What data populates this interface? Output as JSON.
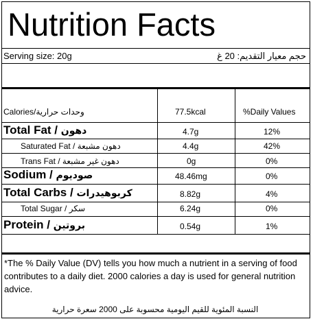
{
  "title": "Nutrition Facts",
  "serving": {
    "en": "Serving size: 20g",
    "ar": "حجم معيار التقديم: 20 غ"
  },
  "header": {
    "calories_label": "Calories/وحدات حرارية",
    "calories_value": "77.5kcal",
    "dv_label": "%Daily Values"
  },
  "rows": [
    {
      "en": "Total Fat / ",
      "ar": "دهون",
      "amount": "4.7g",
      "dv": "12%"
    },
    {
      "label": "Saturated Fat / دهون مشبعة",
      "amount": "4.4g",
      "dv": "42%"
    },
    {
      "label": "Trans Fat / دهون غير مشبعة",
      "amount": "0g",
      "dv": "0%"
    },
    {
      "en": "Sodium / ",
      "ar": "صوديوم",
      "amount": "48.46mg",
      "dv": "0%"
    },
    {
      "en": "Total Carbs / ",
      "ar": "كربوهيدرات",
      "amount": "8.82g",
      "dv": "4%"
    },
    {
      "label": "Total Sugar / سكر",
      "amount": "6.24g",
      "dv": "0%"
    },
    {
      "en": "Protein / ",
      "ar": "بروتين",
      "amount": "0.54g",
      "dv": "1%"
    }
  ],
  "footnote": {
    "en": "*The % Daily Value (DV) tells you how much a nutrient in a serving of food contributes to a daily diet. 2000 calories a day is used for general nutrition advice.",
    "ar": "النسبة المئوية للقيم اليومية محسوبة على 2000 سعرة حرارية"
  }
}
